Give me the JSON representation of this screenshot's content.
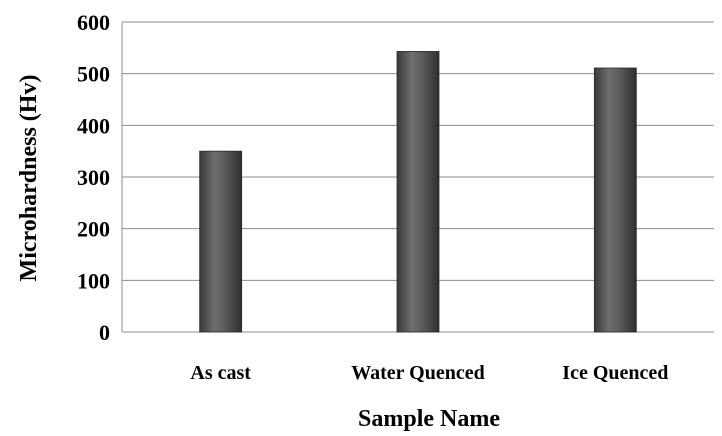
{
  "chart_data": {
    "type": "bar",
    "title": "",
    "xlabel": "Sample Name",
    "ylabel": "Microhardness (Hv)",
    "categories": [
      "As cast",
      "Water Quenced",
      "Ice Quenced"
    ],
    "values": [
      350,
      543,
      511
    ],
    "ylim": [
      0,
      600
    ],
    "yticks": [
      "0",
      "100",
      "200",
      "300",
      "400",
      "500",
      "600"
    ],
    "grid": true,
    "legend": "none",
    "bar_color": "#5a5a5a"
  }
}
